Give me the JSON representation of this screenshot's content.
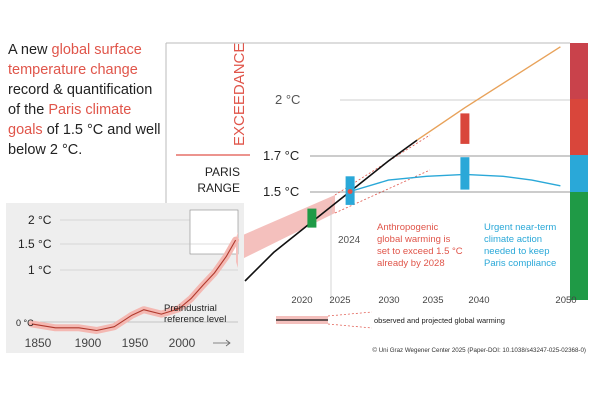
{
  "headline": {
    "part1": "A new ",
    "hl1": "global surface temperature change",
    "part2": " record & quantification of the ",
    "hl2": "Paris climate goals",
    "part3": " of 1.5 °C and well below 2 °C."
  },
  "main_chart": {
    "exceedance_label": "EXCEEDANCE",
    "paris_range_label_1": "PARIS",
    "paris_range_label_2": "RANGE",
    "levels": [
      "2 °C",
      "1.7 °C",
      "1.5 °C"
    ],
    "x_ticks": [
      "2020",
      "2025",
      "2030",
      "2035",
      "2040",
      "2050"
    ],
    "marker_2024_label": "2024",
    "annotation_anthropogenic": [
      "Anthropogenic",
      "global warming is",
      "set to exceed 1.5 °C",
      "already by 2028"
    ],
    "annotation_urgent": [
      "Urgent near-term",
      "climate action",
      "needed to keep",
      "Paris compliance"
    ],
    "legend_label": "observed and projected global warming"
  },
  "inset_chart": {
    "y_ticks": [
      "2 °C",
      "1.5 °C",
      "1 °C",
      "0 °C"
    ],
    "x_ticks": [
      "1850",
      "1900",
      "1950",
      "2000"
    ],
    "reference_label_1": "Preindustrial",
    "reference_label_2": "reference level"
  },
  "chart_data": [
    {
      "type": "line",
      "chart": "main",
      "xlim": [
        2017,
        2051
      ],
      "ylim": [
        0.95,
        2.3
      ],
      "series": [
        {
          "x": [
            2017,
            2020,
            2024,
            2028,
            2032,
            2035
          ],
          "y": [
            1.05,
            1.2,
            1.36,
            1.52,
            1.68,
            1.79
          ]
        },
        {
          "x": [
            2035,
            2040,
            2045,
            2050
          ],
          "y": [
            1.79,
            1.96,
            2.12,
            2.28
          ]
        },
        {
          "x": [
            2028,
            2032,
            2036,
            2040,
            2044,
            2047,
            2050
          ],
          "y": [
            1.52,
            1.58,
            1.6,
            1.61,
            1.6,
            1.58,
            1.55
          ]
        }
      ],
      "colors": {
        "observed": "#111111",
        "projected": "#e8a25a",
        "paris": "#2aa8d8",
        "band": "#f4c0bd",
        "exceed": "#d9463b",
        "bar_2024": "#1f9a46"
      },
      "markers": [
        {
          "x": 2024,
          "y_range": [
            1.33,
            1.43
          ],
          "color": "#1f9a46"
        },
        {
          "x": 2028,
          "y_range": [
            1.45,
            1.6
          ],
          "color": "#2aa8d8"
        },
        {
          "x": 2040,
          "y_range": [
            1.53,
            1.7
          ],
          "color": "#2aa8d8"
        },
        {
          "x": 2040,
          "y_range": [
            1.77,
            1.93
          ],
          "color": "#d9463b"
        }
      ]
    },
    {
      "type": "line",
      "chart": "inset",
      "xlim": [
        1840,
        2025
      ],
      "ylim": [
        -0.2,
        2.1
      ],
      "x": [
        1850,
        1870,
        1890,
        1905,
        1920,
        1935,
        1945,
        1960,
        1975,
        1985,
        1995,
        2005,
        2015,
        2023
      ],
      "y": [
        0.02,
        -0.05,
        -0.05,
        -0.1,
        -0.03,
        0.18,
        0.28,
        0.2,
        0.3,
        0.48,
        0.72,
        0.95,
        1.25,
        1.55
      ]
    }
  ]
}
